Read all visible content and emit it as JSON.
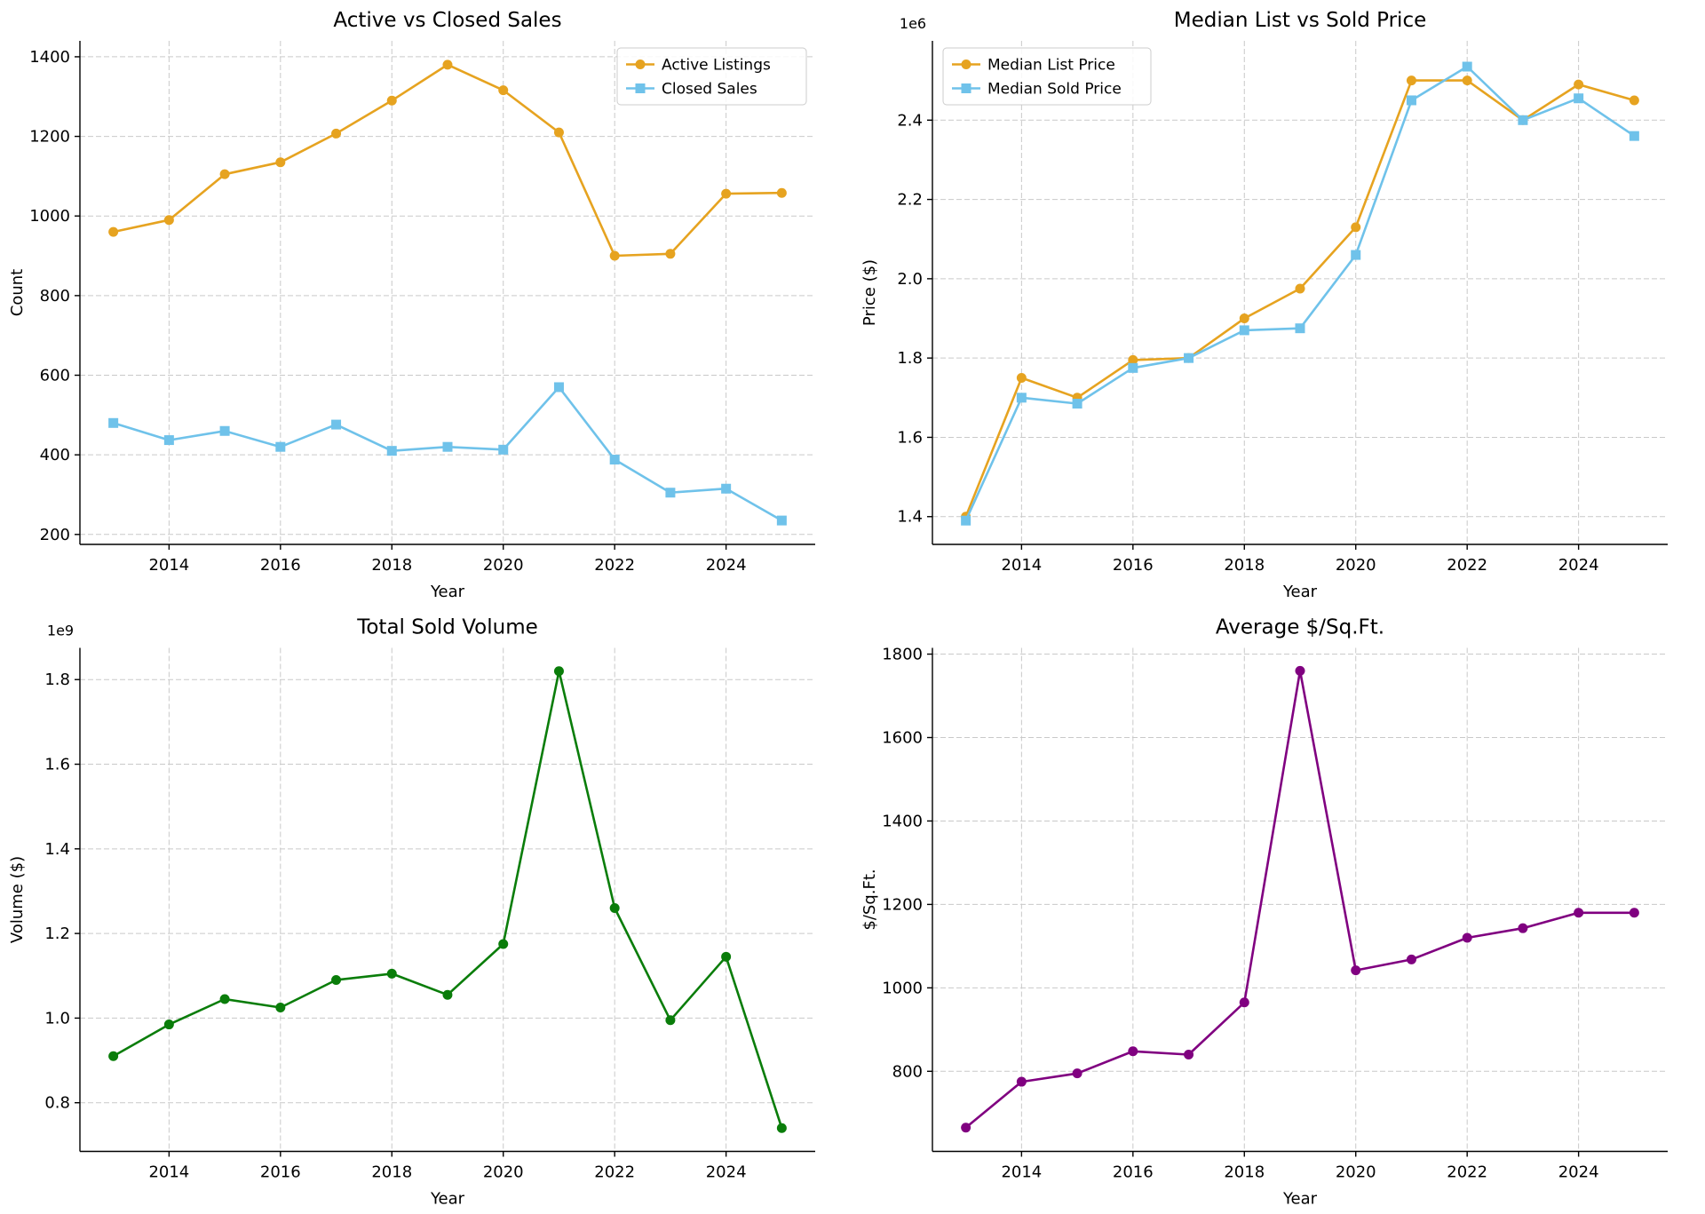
{
  "page": {
    "background": "#ffffff",
    "text_color": "#000000",
    "grid_color": "#c9c9c9"
  },
  "chart_data": [
    {
      "type": "line",
      "title": "Active vs Closed Sales",
      "xlabel": "Year",
      "ylabel": "Count",
      "x": [
        2013,
        2014,
        2015,
        2016,
        2017,
        2018,
        2019,
        2020,
        2021,
        2022,
        2023,
        2024,
        2025
      ],
      "xlim": [
        2012.4,
        2025.6
      ],
      "ylim": [
        175,
        1440
      ],
      "xticks": [
        2014,
        2016,
        2018,
        2020,
        2022,
        2024
      ],
      "yticks": [
        200,
        400,
        600,
        800,
        1000,
        1200,
        1400
      ],
      "grid": true,
      "offset_text": "",
      "legend": {
        "show": true,
        "position": "top-right"
      },
      "series": [
        {
          "name": "Active Listings",
          "color": "#E6A320",
          "marker": "circle",
          "values": [
            960,
            990,
            1105,
            1135,
            1207,
            1290,
            1380,
            1316,
            1210,
            900,
            905,
            1056,
            1058
          ]
        },
        {
          "name": "Closed Sales",
          "color": "#6FC2EA",
          "marker": "square",
          "values": [
            480,
            437,
            460,
            420,
            476,
            410,
            420,
            413,
            570,
            388,
            305,
            315,
            235
          ]
        }
      ]
    },
    {
      "type": "line",
      "title": "Median List vs Sold Price",
      "xlabel": "Year",
      "ylabel": "Price ($)",
      "units": "values are in units of 1e6 dollars",
      "x": [
        2013,
        2014,
        2015,
        2016,
        2017,
        2018,
        2019,
        2020,
        2021,
        2022,
        2023,
        2024,
        2025
      ],
      "xlim": [
        2012.4,
        2025.6
      ],
      "ylim": [
        1.33,
        2.6
      ],
      "xticks": [
        2014,
        2016,
        2018,
        2020,
        2022,
        2024
      ],
      "yticks": [
        1.4,
        1.6,
        1.8,
        2.0,
        2.2,
        2.4
      ],
      "ytick_labels": [
        "1.4",
        "1.6",
        "1.8",
        "2.0",
        "2.2",
        "2.4"
      ],
      "grid": true,
      "offset_text": "1e6",
      "legend": {
        "show": true,
        "position": "top-left"
      },
      "series": [
        {
          "name": "Median List Price",
          "color": "#E6A320",
          "marker": "circle",
          "values": [
            1.4,
            1.75,
            1.7,
            1.795,
            1.8,
            1.9,
            1.975,
            2.13,
            2.5,
            2.5,
            2.4,
            2.49,
            2.45
          ]
        },
        {
          "name": "Median Sold Price",
          "color": "#6FC2EA",
          "marker": "square",
          "values": [
            1.39,
            1.7,
            1.685,
            1.775,
            1.8,
            1.87,
            1.875,
            2.06,
            2.45,
            2.535,
            2.4,
            2.455,
            2.36
          ]
        }
      ]
    },
    {
      "type": "line",
      "title": "Total Sold Volume",
      "xlabel": "Year",
      "ylabel": "Volume ($)",
      "units": "values are in units of 1e9 dollars",
      "x": [
        2013,
        2014,
        2015,
        2016,
        2017,
        2018,
        2019,
        2020,
        2021,
        2022,
        2023,
        2024,
        2025
      ],
      "xlim": [
        2012.4,
        2025.6
      ],
      "ylim": [
        0.685,
        1.875
      ],
      "xticks": [
        2014,
        2016,
        2018,
        2020,
        2022,
        2024
      ],
      "yticks": [
        0.8,
        1.0,
        1.2,
        1.4,
        1.6,
        1.8
      ],
      "ytick_labels": [
        "0.8",
        "1.0",
        "1.2",
        "1.4",
        "1.6",
        "1.8"
      ],
      "grid": true,
      "offset_text": "1e9",
      "legend": {
        "show": false,
        "position": "top-right"
      },
      "series": [
        {
          "name": "Total Sold Volume",
          "color": "#0A7D0A",
          "marker": "circle",
          "values": [
            0.91,
            0.985,
            1.045,
            1.025,
            1.09,
            1.105,
            1.055,
            1.175,
            1.82,
            1.26,
            0.995,
            1.145,
            0.74
          ]
        }
      ]
    },
    {
      "type": "line",
      "title": "Average $/Sq.Ft.",
      "xlabel": "Year",
      "ylabel": "$/Sq.Ft.",
      "x": [
        2013,
        2014,
        2015,
        2016,
        2017,
        2018,
        2019,
        2020,
        2021,
        2022,
        2023,
        2024,
        2025
      ],
      "xlim": [
        2012.4,
        2025.6
      ],
      "ylim": [
        608,
        1815
      ],
      "xticks": [
        2014,
        2016,
        2018,
        2020,
        2022,
        2024
      ],
      "yticks": [
        800,
        1000,
        1200,
        1400,
        1600,
        1800
      ],
      "grid": true,
      "offset_text": "",
      "legend": {
        "show": false,
        "position": "top-right"
      },
      "series": [
        {
          "name": "Average $/Sq.Ft.",
          "color": "#800080",
          "marker": "circle",
          "values": [
            665,
            775,
            795,
            848,
            840,
            965,
            1760,
            1042,
            1068,
            1120,
            1143,
            1180,
            1180
          ]
        }
      ]
    }
  ]
}
